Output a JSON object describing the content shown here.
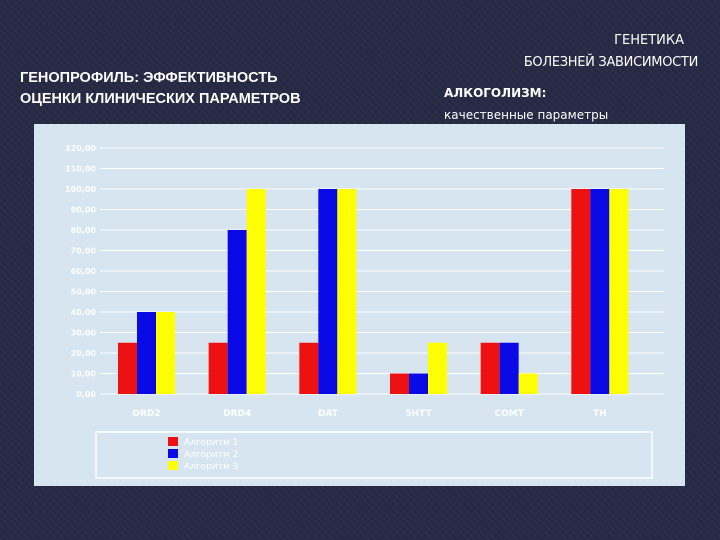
{
  "header": {
    "right_title_line1": "ГЕНЕТИКА",
    "right_title_line2": "БОЛЕЗНЕЙ ЗАВИСИМОСТИ",
    "left_title_line1": "ГЕНОПРОФИЛЬ: ЭФФЕКТИВНОСТЬ",
    "left_title_line2": "ОЦЕНКИ КЛИНИЧЕСКИХ ПАРАМЕТРОВ",
    "subtitle_line1": "АЛКОГОЛИЗМ:",
    "subtitle_line2": "качественные параметры"
  },
  "colors": {
    "red": "#ee1111",
    "blue": "#0a0ae6",
    "yellow": "#ffff00",
    "panel": "#d6e5f0",
    "label": "#ffffff"
  },
  "chart_data": {
    "type": "bar",
    "categories": [
      "DRD2",
      "DRD4",
      "DAT",
      "5HTT",
      "COMT",
      "TH"
    ],
    "series": [
      {
        "name": "Алгоритм 1",
        "color": "#ee1111",
        "values": [
          25,
          25,
          25,
          10,
          25,
          100
        ]
      },
      {
        "name": "Алгоритм 2",
        "color": "#0a0ae6",
        "values": [
          40,
          80,
          100,
          10,
          25,
          100
        ]
      },
      {
        "name": "Алгоритм 3",
        "color": "#ffff00",
        "values": [
          40,
          100,
          100,
          25,
          10,
          100
        ]
      }
    ],
    "yticks": [
      "0,00",
      "10,00",
      "20,00",
      "30,00",
      "40,00",
      "50,00",
      "60,00",
      "70,00",
      "80,00",
      "90,00",
      "100,00",
      "110,00",
      "120,00"
    ],
    "ylim": [
      0,
      120
    ],
    "grid": true,
    "legend_position": "bottom"
  }
}
